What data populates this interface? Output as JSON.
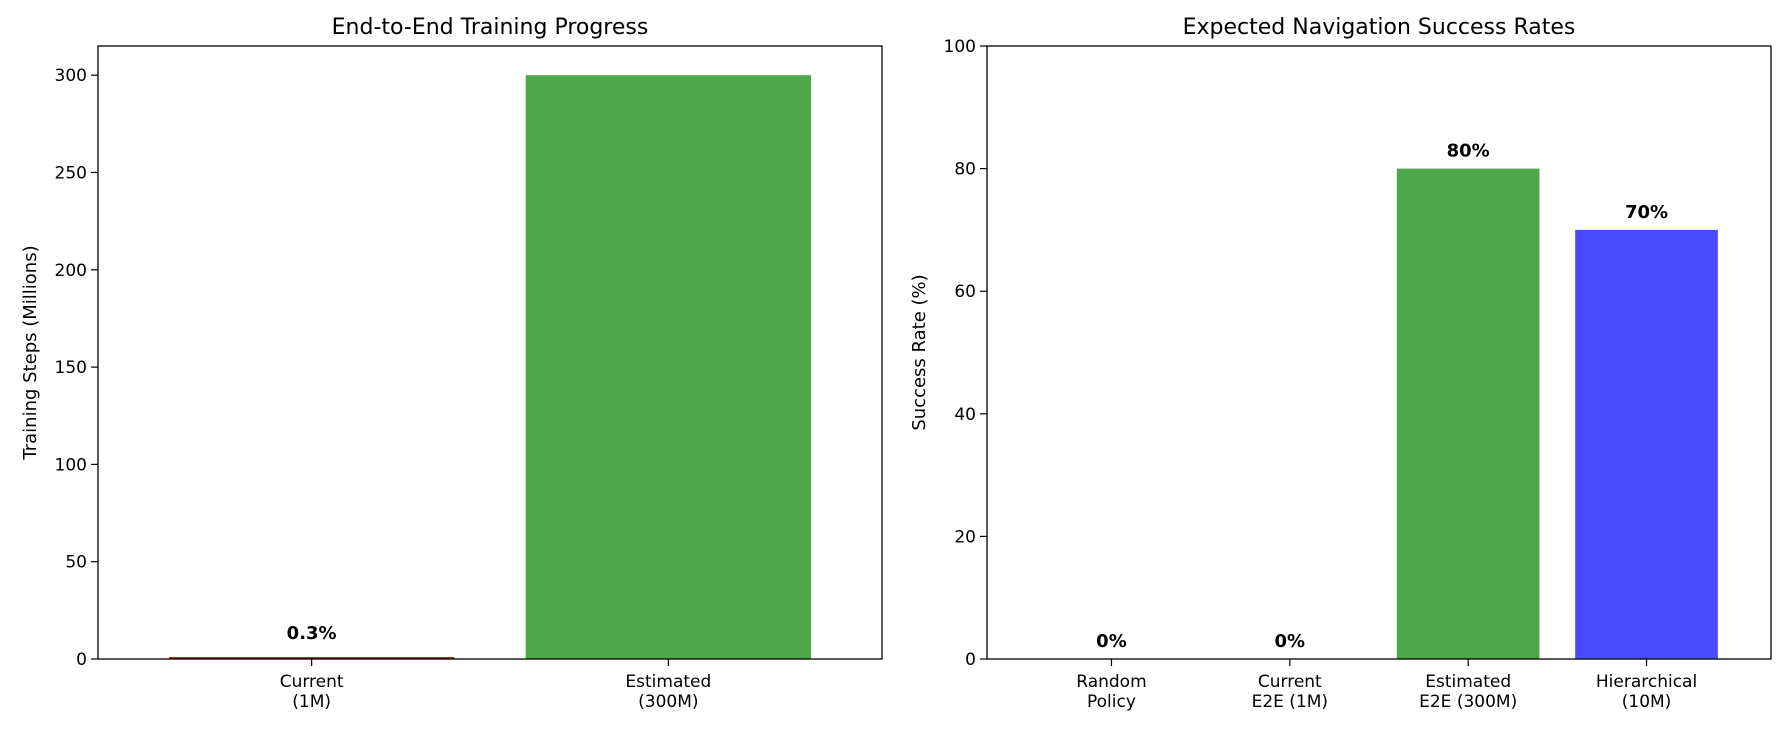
{
  "chart_data": [
    {
      "type": "bar",
      "title": "End-to-End Training Progress",
      "xlabel": "",
      "ylabel": "Training Steps (Millions)",
      "ylim": [
        0,
        315
      ],
      "yticks": [
        0,
        50,
        100,
        150,
        200,
        250,
        300
      ],
      "categories": [
        "Current\n(1M)",
        "Estimated\n(300M)"
      ],
      "values": [
        1,
        300
      ],
      "colors": [
        "#b22222",
        "#4ea84a"
      ],
      "data_labels": [
        "0.3%",
        ""
      ],
      "grid": false,
      "legend": "none"
    },
    {
      "type": "bar",
      "title": "Expected Navigation Success Rates",
      "xlabel": "",
      "ylabel": "Success Rate (%)",
      "ylim": [
        0,
        100
      ],
      "yticks": [
        0,
        20,
        40,
        60,
        80,
        100
      ],
      "categories": [
        "Random\nPolicy",
        "Current\nE2E (1M)",
        "Estimated\nE2E (300M)",
        "Hierarchical\n(10M)"
      ],
      "values": [
        0,
        0,
        80,
        70
      ],
      "colors": [
        "#b22222",
        "#ff8c00",
        "#4ea84a",
        "#4a4aff"
      ],
      "data_labels": [
        "0%",
        "0%",
        "80%",
        "70%"
      ],
      "grid": false,
      "legend": "none"
    }
  ]
}
